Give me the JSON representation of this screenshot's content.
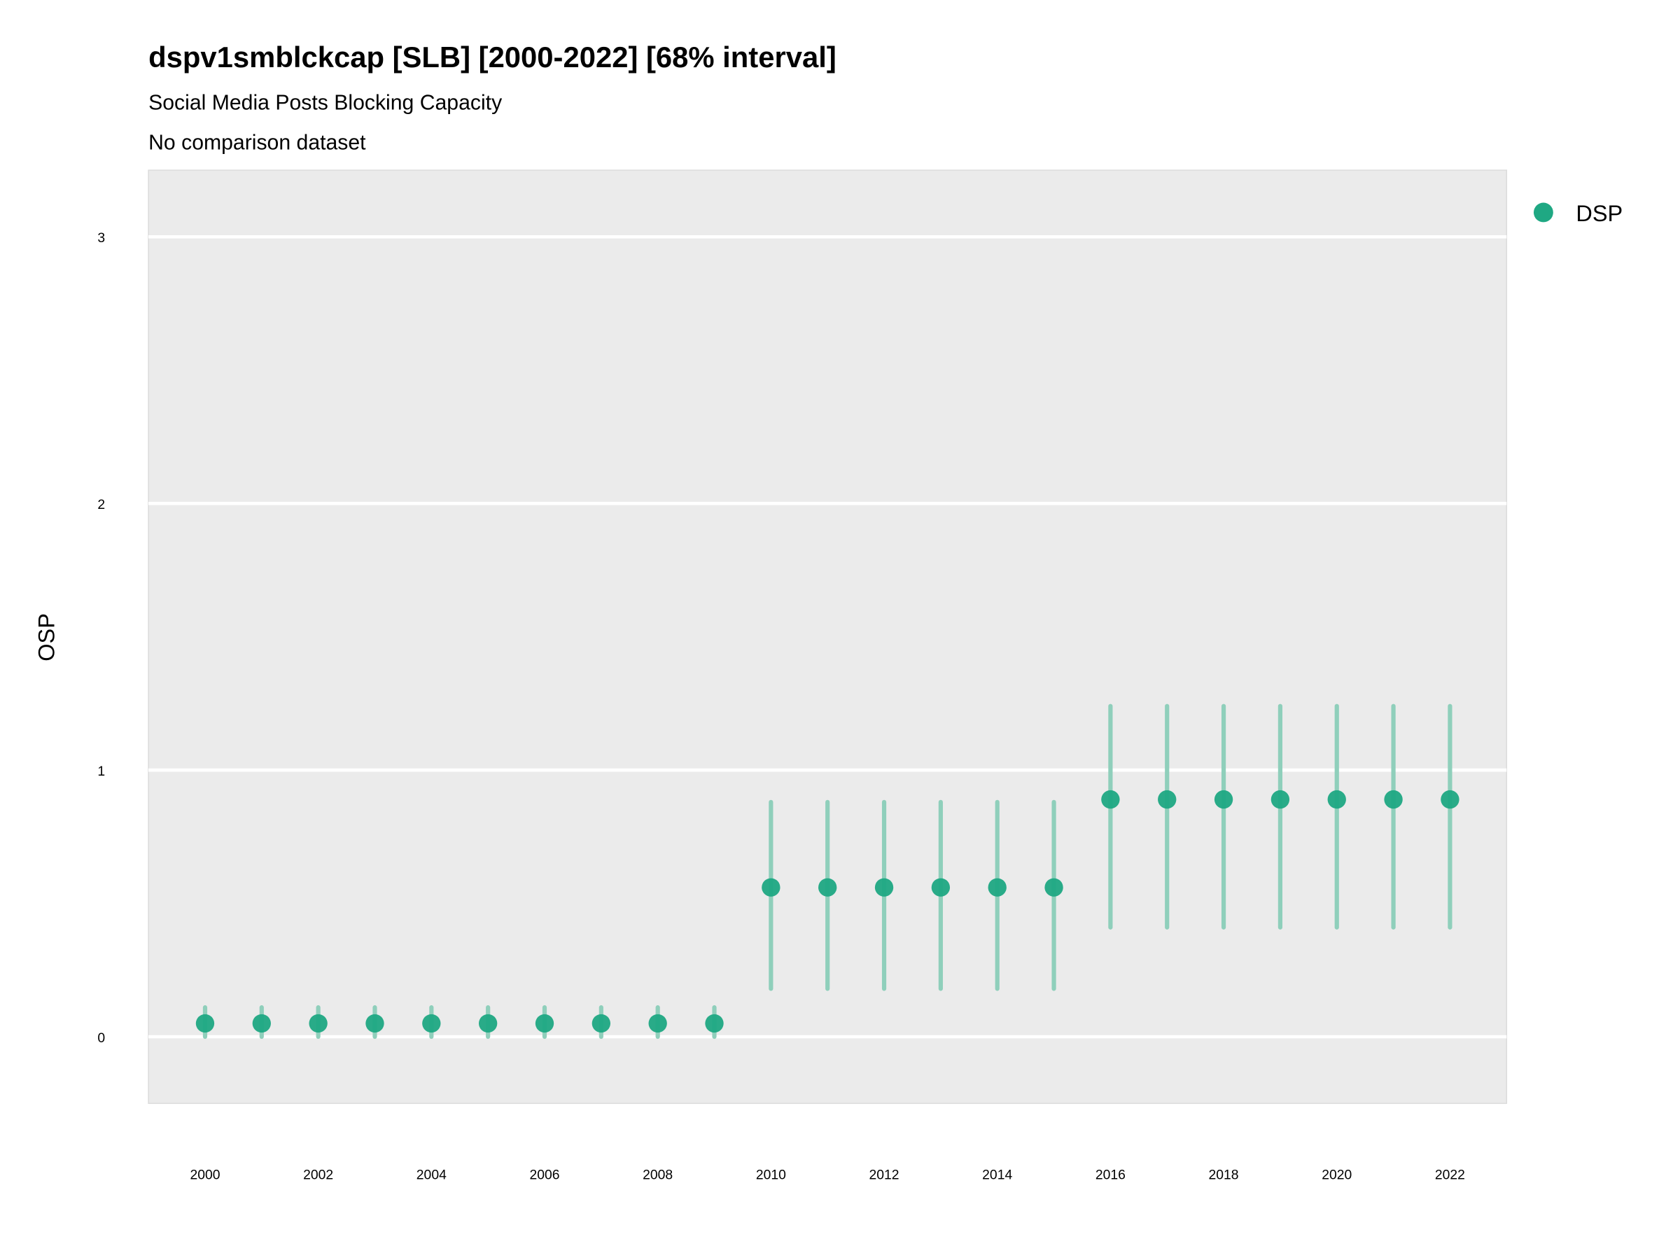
{
  "chart_data": {
    "type": "scatter",
    "title": "dspv1smblckcap [SLB] [2000-2022] [68% interval]",
    "subtitle": "Social Media Posts Blocking Capacity",
    "caption": "No comparison dataset",
    "xlabel": "",
    "ylabel": "OSP",
    "xlim": [
      1999,
      2023
    ],
    "ylim": [
      -0.25,
      3.25
    ],
    "x_ticks": [
      "2000",
      "2002",
      "2004",
      "2006",
      "2008",
      "2010",
      "2012",
      "2014",
      "2016",
      "2018",
      "2020",
      "2022"
    ],
    "y_ticks": [
      "0",
      "1",
      "2",
      "3"
    ],
    "grid": true,
    "legend": {
      "position": "right",
      "entries": [
        "DSP"
      ]
    },
    "colors": {
      "point": "#1fa883",
      "interval": "#8fcfbb",
      "panel": "#ebebeb",
      "grid": "#ffffff"
    },
    "series": [
      {
        "name": "DSP",
        "x": [
          2000,
          2001,
          2002,
          2003,
          2004,
          2005,
          2006,
          2007,
          2008,
          2009,
          2010,
          2011,
          2012,
          2013,
          2014,
          2015,
          2016,
          2017,
          2018,
          2019,
          2020,
          2021,
          2022
        ],
        "y": [
          0.05,
          0.05,
          0.05,
          0.05,
          0.05,
          0.05,
          0.05,
          0.05,
          0.05,
          0.05,
          0.56,
          0.56,
          0.56,
          0.56,
          0.56,
          0.56,
          0.89,
          0.89,
          0.89,
          0.89,
          0.89,
          0.89,
          0.89
        ],
        "lower": [
          0.0,
          0.0,
          0.0,
          0.0,
          0.0,
          0.0,
          0.0,
          0.0,
          0.0,
          0.0,
          0.18,
          0.18,
          0.18,
          0.18,
          0.18,
          0.18,
          0.41,
          0.41,
          0.41,
          0.41,
          0.41,
          0.41,
          0.41
        ],
        "upper": [
          0.11,
          0.11,
          0.11,
          0.11,
          0.11,
          0.11,
          0.11,
          0.11,
          0.11,
          0.11,
          0.88,
          0.88,
          0.88,
          0.88,
          0.88,
          0.88,
          1.24,
          1.24,
          1.24,
          1.24,
          1.24,
          1.24,
          1.24
        ]
      }
    ]
  }
}
